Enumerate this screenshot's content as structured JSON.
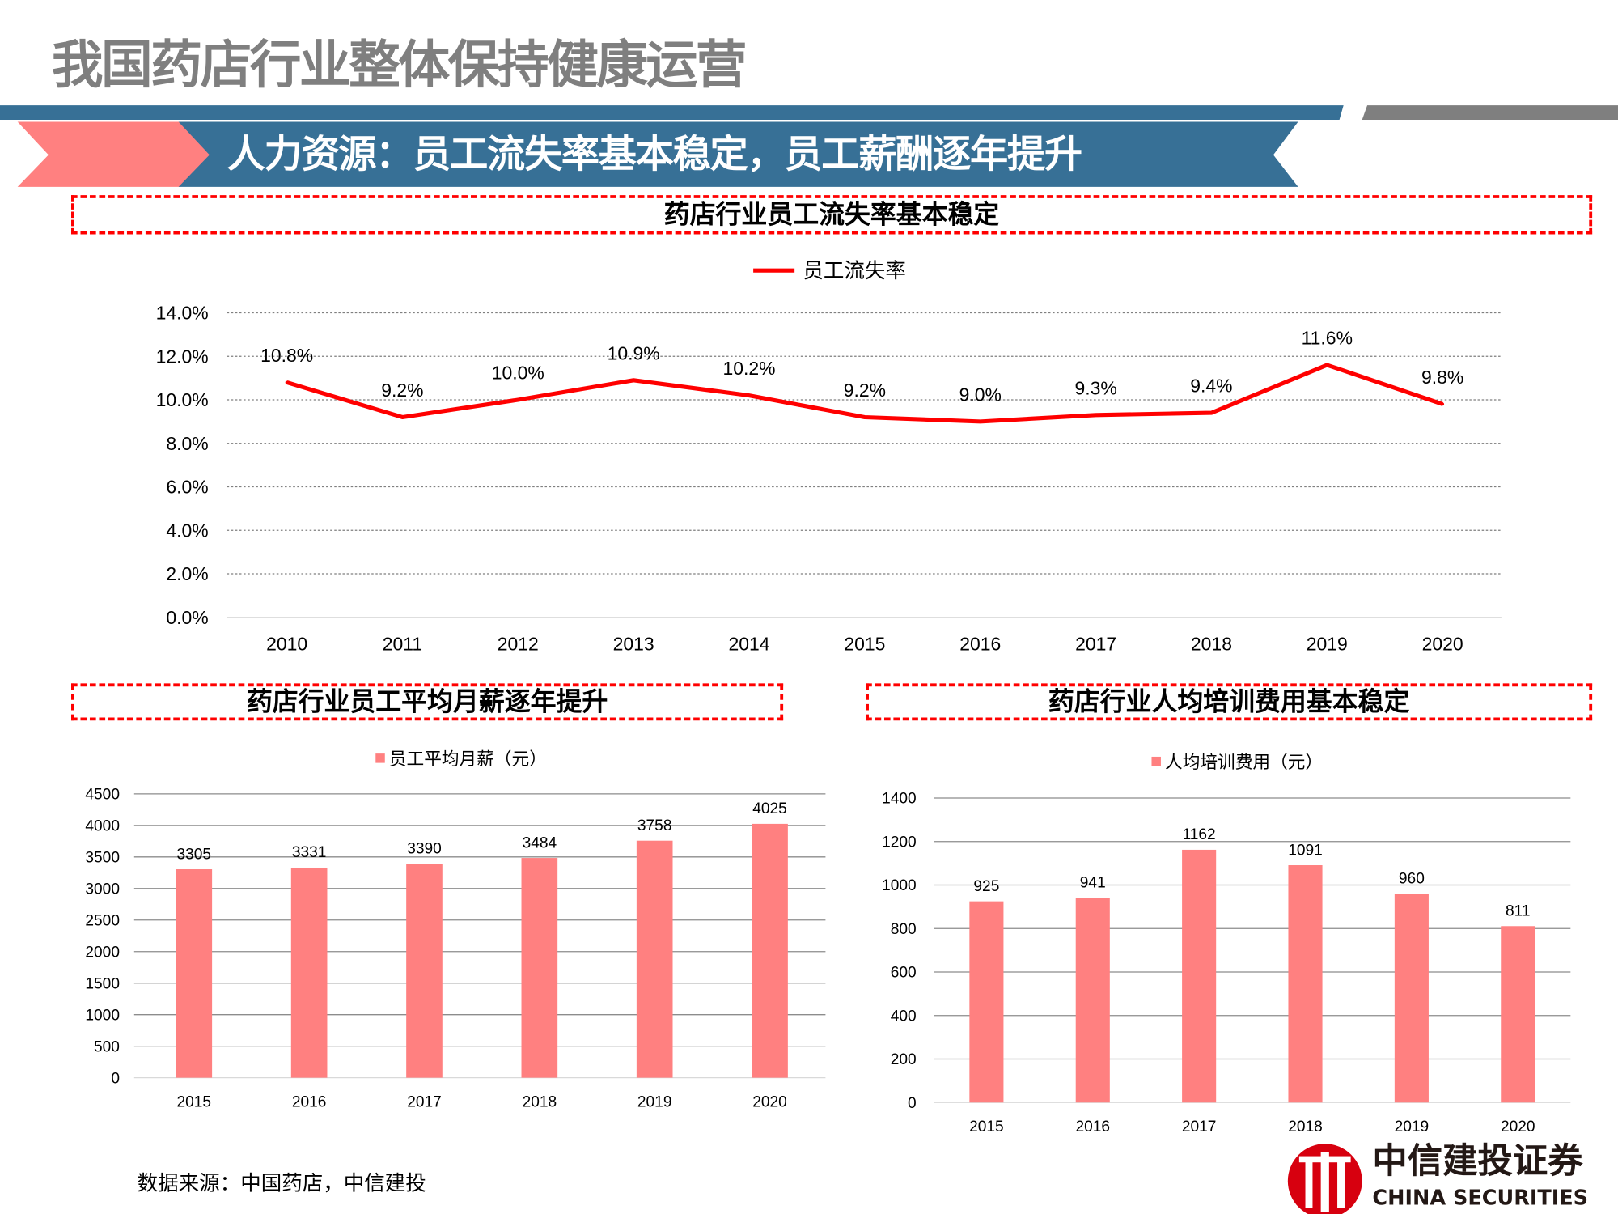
{
  "header": {
    "title": "我国药店行业整体保持健康运营",
    "subtitle": "人力资源：员工流失率基本稳定，员工薪酬逐年提升"
  },
  "colors": {
    "header_blue": "#377096",
    "gray": "#7f7f7f",
    "pink": "#ff8080",
    "red": "#ff0000"
  },
  "footer": {
    "source": "数据来源：中国药店，中信建投",
    "logo_cn": "中信建投证券",
    "logo_en": "CHINA SECURITIES"
  },
  "chart_data": [
    {
      "type": "line",
      "title": "药店行业员工流失率基本稳定",
      "legend": "top",
      "categories": [
        "2010",
        "2011",
        "2012",
        "2013",
        "2014",
        "2015",
        "2016",
        "2017",
        "2018",
        "2019",
        "2020"
      ],
      "series": [
        {
          "name": "员工流失率",
          "color": "#ff0000",
          "values": [
            10.8,
            9.2,
            10.0,
            10.9,
            10.2,
            9.2,
            9.0,
            9.3,
            9.4,
            11.6,
            9.8
          ],
          "labels": [
            "10.8%",
            "9.2%",
            "10.0%",
            "10.9%",
            "10.2%",
            "9.2%",
            "9.0%",
            "9.3%",
            "9.4%",
            "11.6%",
            "9.8%"
          ]
        }
      ],
      "ylim": [
        0,
        14
      ],
      "yticks": [
        "0.0%",
        "2.0%",
        "4.0%",
        "6.0%",
        "8.0%",
        "10.0%",
        "12.0%",
        "14.0%"
      ],
      "grid": true
    },
    {
      "type": "bar",
      "title": "药店行业员工平均月薪逐年提升",
      "legend": "top",
      "categories": [
        "2015",
        "2016",
        "2017",
        "2018",
        "2019",
        "2020"
      ],
      "series": [
        {
          "name": "员工平均月薪（元）",
          "color": "#ff8080",
          "values": [
            3305,
            3331,
            3390,
            3484,
            3758,
            4025
          ]
        }
      ],
      "ylim": [
        0,
        4500
      ],
      "yticks": [
        "0",
        "500",
        "1000",
        "1500",
        "2000",
        "2500",
        "3000",
        "3500",
        "4000",
        "4500"
      ],
      "grid": true
    },
    {
      "type": "bar",
      "title": "药店行业人均培训费用基本稳定",
      "legend": "top",
      "categories": [
        "2015",
        "2016",
        "2017",
        "2018",
        "2019",
        "2020"
      ],
      "series": [
        {
          "name": "人均培训费用（元）",
          "color": "#ff8080",
          "values": [
            925,
            941,
            1162,
            1091,
            960,
            811
          ]
        }
      ],
      "ylim": [
        0,
        1400
      ],
      "yticks": [
        "0",
        "200",
        "400",
        "600",
        "800",
        "1000",
        "1200",
        "1400"
      ],
      "grid": true
    }
  ]
}
